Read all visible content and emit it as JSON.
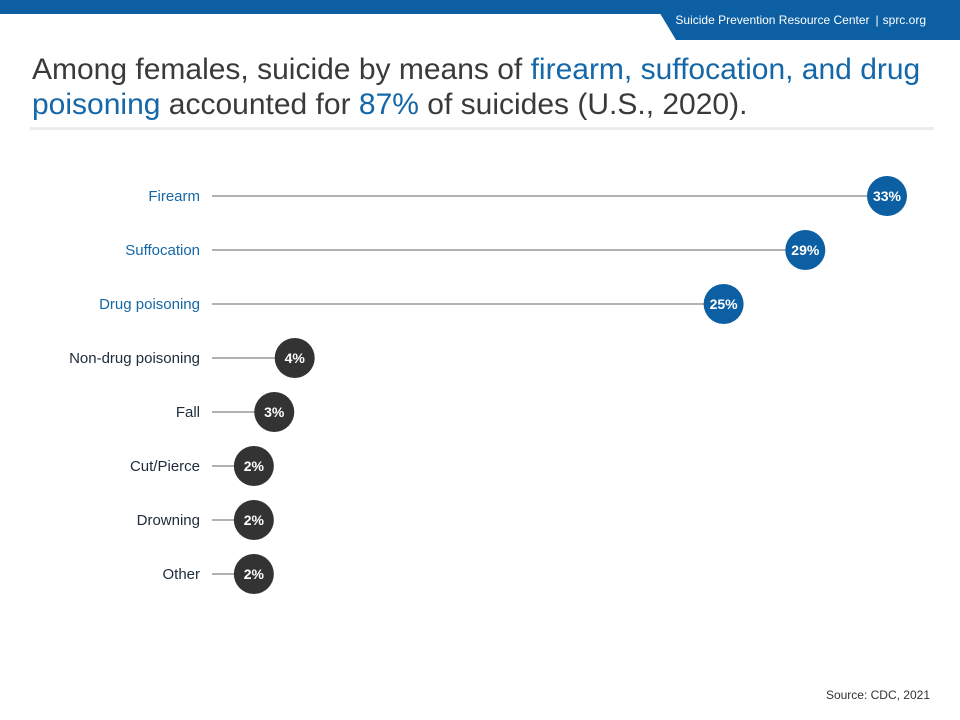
{
  "header": {
    "org_name": "Suicide Prevention Resource Center",
    "separator": "|",
    "site": "sprc.org",
    "brand_color": "#0c5fa3"
  },
  "headline": {
    "part1": "Among females, suicide by means of ",
    "highlight1": "firearm, suffocation, and drug poisoning",
    "part2": " accounted for ",
    "highlight2": "87%",
    "part3": " of suicides (U.S., 2020).",
    "highlight_color": "#1467a8"
  },
  "chart_data": {
    "type": "bar",
    "style": "lollipop",
    "categories": [
      "Firearm",
      "Suffocation",
      "Drug poisoning",
      "Non-drug poisoning",
      "Fall",
      "Cut/Pierce",
      "Drowning",
      "Other"
    ],
    "values": [
      33,
      29,
      25,
      4,
      3,
      2,
      2,
      2
    ],
    "value_labels": [
      "33%",
      "29%",
      "25%",
      "4%",
      "3%",
      "2%",
      "2%",
      "2%"
    ],
    "highlighted": [
      true,
      true,
      true,
      false,
      false,
      false,
      false,
      false
    ],
    "highlight_color": "#0c5fa3",
    "default_color": "#333333",
    "highlight_label_color": "#1467a8",
    "default_label_color": "#1d2b3a",
    "xlim": [
      0,
      33
    ],
    "grid": false,
    "title": "",
    "xlabel": "",
    "ylabel": ""
  },
  "source": "Source: CDC, 2021"
}
